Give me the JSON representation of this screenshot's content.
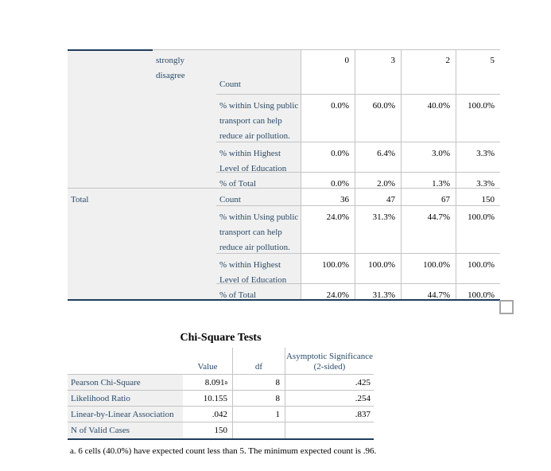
{
  "colors": {
    "label_text": "#2a4a68",
    "value_text": "#000000",
    "shade": "#f0f0f0",
    "grid_line": "#c4c4c4",
    "dark_border": "#1f3d5c",
    "handle_border": "#a6a6a6"
  },
  "crosstab": {
    "category": {
      "label": "strongly disagree"
    },
    "total_label": "Total",
    "row_labels": {
      "count": "Count",
      "pct_within_transport": "% within Using public transport can help reduce air pollution.",
      "pct_within_education": "% within Highest Level of Education",
      "pct_of_total": "% of Total"
    },
    "strongly_disagree": {
      "count": [
        "0",
        "3",
        "2",
        "5"
      ],
      "pct_within_transport": [
        "0.0%",
        "60.0%",
        "40.0%",
        "100.0%"
      ],
      "pct_within_education": [
        "0.0%",
        "6.4%",
        "3.0%",
        "3.3%"
      ],
      "pct_of_total": [
        "0.0%",
        "2.0%",
        "1.3%",
        "3.3%"
      ]
    },
    "total": {
      "count": [
        "36",
        "47",
        "67",
        "150"
      ],
      "pct_within_transport": [
        "24.0%",
        "31.3%",
        "44.7%",
        "100.0%"
      ],
      "pct_within_education": [
        "100.0%",
        "100.0%",
        "100.0%",
        "100.0%"
      ],
      "pct_of_total": [
        "24.0%",
        "31.3%",
        "44.7%",
        "100.0%"
      ]
    }
  },
  "chi_square": {
    "title": "Chi-Square Tests",
    "headers": {
      "value": "Value",
      "df": "df",
      "asymp_sig": "Asymptotic Significance (2-sided)"
    },
    "rows": [
      {
        "label": "Pearson Chi-Square",
        "value": "8.091",
        "value_sup": "a",
        "df": "8",
        "sig": ".425"
      },
      {
        "label": "Likelihood Ratio",
        "value": "10.155",
        "value_sup": "",
        "df": "8",
        "sig": ".254"
      },
      {
        "label": "Linear-by-Linear Association",
        "value": ".042",
        "value_sup": "",
        "df": "1",
        "sig": ".837"
      },
      {
        "label": "N of Valid Cases",
        "value": "150",
        "value_sup": "",
        "df": "",
        "sig": ""
      }
    ],
    "footnote": "a. 6 cells (40.0%) have expected count less than 5. The minimum expected count is .96."
  }
}
